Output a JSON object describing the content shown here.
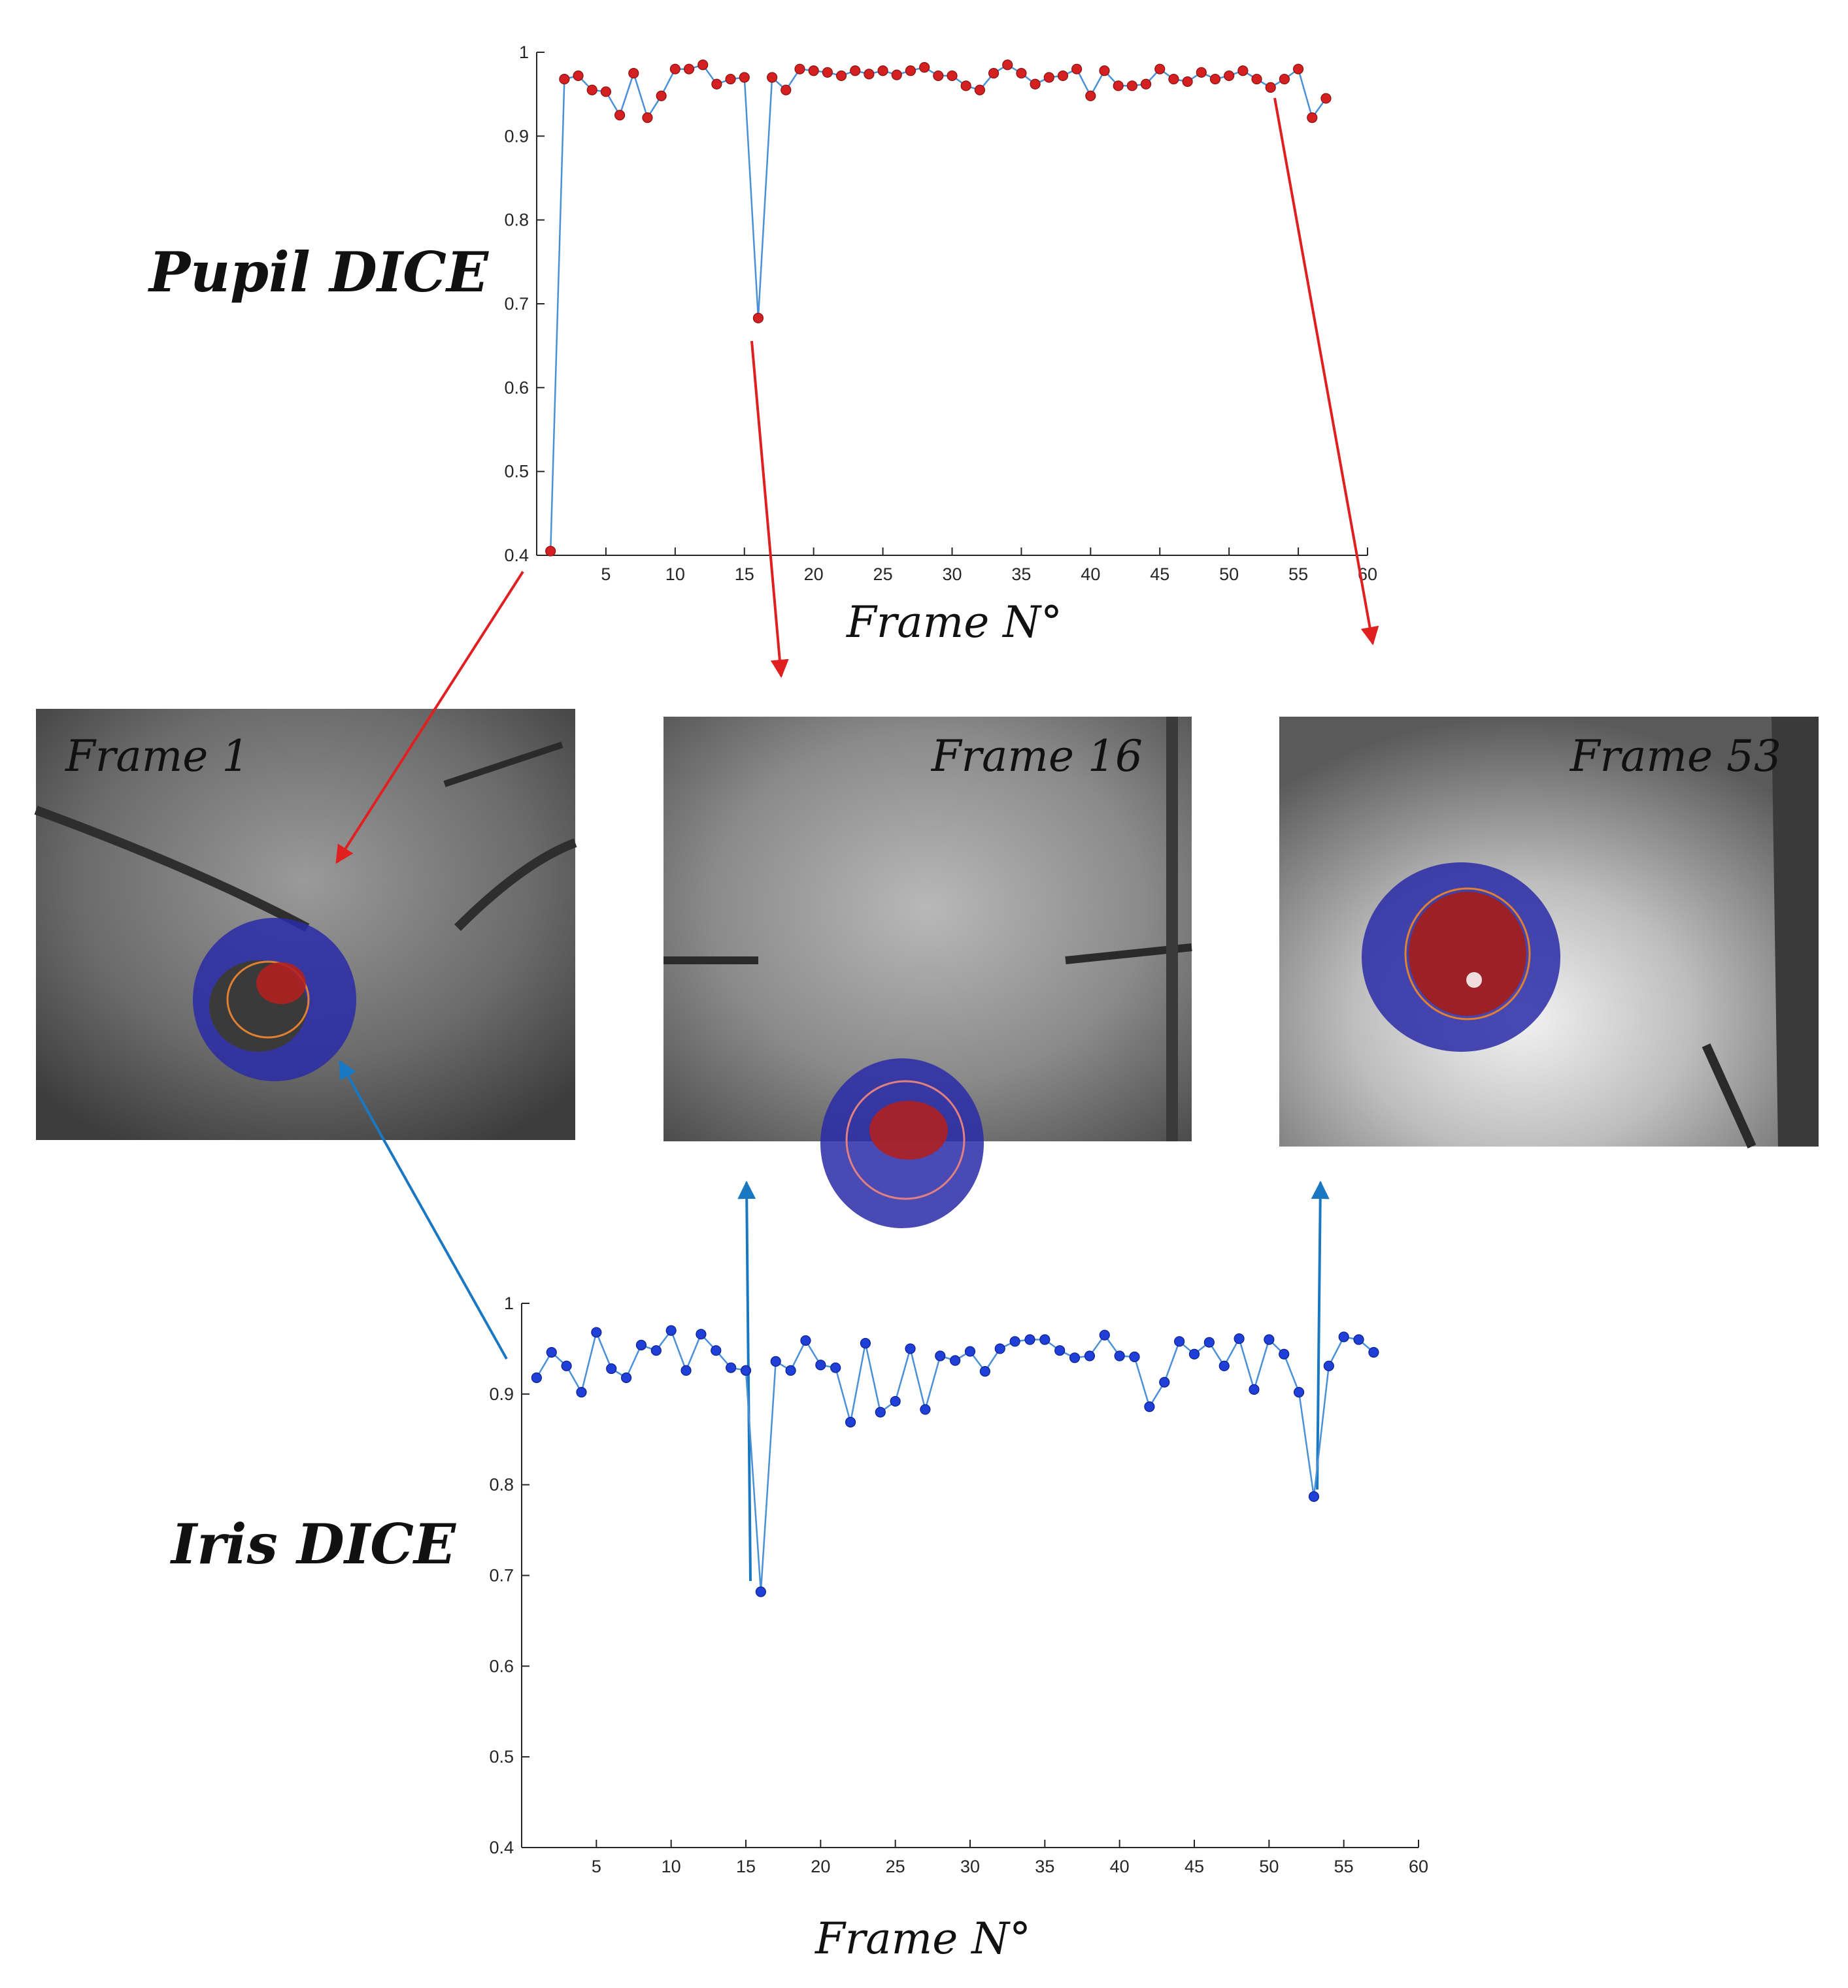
{
  "chart_data": [
    {
      "type": "line",
      "name": "pupil",
      "ylabel": "Pupil DICE",
      "xlabel": "Frame N°",
      "xlim": [
        0,
        60
      ],
      "ylim": [
        0.4,
        1
      ],
      "xticks": [
        "5",
        "10",
        "15",
        "20",
        "25",
        "30",
        "35",
        "40",
        "45",
        "50",
        "55",
        "60"
      ],
      "yticks": [
        "0.4",
        "0.5",
        "0.6",
        "0.7",
        "0.8",
        "0.9",
        "1"
      ],
      "line_color": "#4a90d9",
      "marker_color": "#d42020",
      "x": [
        1,
        2,
        3,
        4,
        5,
        6,
        7,
        8,
        9,
        10,
        11,
        12,
        13,
        14,
        15,
        16,
        17,
        18,
        19,
        20,
        21,
        22,
        23,
        24,
        25,
        26,
        27,
        28,
        29,
        30,
        31,
        32,
        33,
        34,
        35,
        36,
        37,
        38,
        39,
        40,
        41,
        42,
        43,
        44,
        45,
        46,
        47,
        48,
        49,
        50,
        51,
        52,
        53,
        54,
        55,
        56,
        57
      ],
      "values": [
        0.405,
        0.968,
        0.972,
        0.955,
        0.953,
        0.925,
        0.975,
        0.922,
        0.948,
        0.98,
        0.98,
        0.985,
        0.962,
        0.968,
        0.97,
        0.683,
        0.97,
        0.955,
        0.98,
        0.978,
        0.976,
        0.972,
        0.978,
        0.974,
        0.978,
        0.973,
        0.978,
        0.982,
        0.972,
        0.972,
        0.96,
        0.955,
        0.975,
        0.985,
        0.975,
        0.962,
        0.97,
        0.972,
        0.98,
        0.948,
        0.978,
        0.96,
        0.96,
        0.962,
        0.98,
        0.968,
        0.965,
        0.976,
        0.968,
        0.972,
        0.978,
        0.968,
        0.958,
        0.968,
        0.98,
        0.922,
        0.945
      ]
    },
    {
      "type": "line",
      "name": "iris",
      "ylabel": "Iris DICE",
      "xlabel": "Frame N°",
      "xlim": [
        0,
        60
      ],
      "ylim": [
        0.4,
        1
      ],
      "xticks": [
        "5",
        "10",
        "15",
        "20",
        "25",
        "30",
        "35",
        "40",
        "45",
        "50",
        "55",
        "60"
      ],
      "yticks": [
        "0.4",
        "0.5",
        "0.6",
        "0.7",
        "0.8",
        "0.9",
        "1"
      ],
      "line_color": "#4a90d9",
      "marker_color": "#1f3fd6",
      "x": [
        1,
        2,
        3,
        4,
        5,
        6,
        7,
        8,
        9,
        10,
        11,
        12,
        13,
        14,
        15,
        16,
        17,
        18,
        19,
        20,
        21,
        22,
        23,
        24,
        25,
        26,
        27,
        28,
        29,
        30,
        31,
        32,
        33,
        34,
        35,
        36,
        37,
        38,
        39,
        40,
        41,
        42,
        43,
        44,
        45,
        46,
        47,
        48,
        49,
        50,
        51,
        52,
        53,
        54,
        55,
        56,
        57
      ],
      "values": [
        0.918,
        0.946,
        0.931,
        0.902,
        0.968,
        0.928,
        0.918,
        0.954,
        0.948,
        0.97,
        0.926,
        0.966,
        0.948,
        0.929,
        0.926,
        0.682,
        0.936,
        0.926,
        0.959,
        0.932,
        0.929,
        0.869,
        0.956,
        0.88,
        0.892,
        0.95,
        0.883,
        0.942,
        0.937,
        0.947,
        0.925,
        0.95,
        0.958,
        0.96,
        0.96,
        0.948,
        0.94,
        0.942,
        0.965,
        0.942,
        0.941,
        0.886,
        0.913,
        0.958,
        0.944,
        0.957,
        0.931,
        0.961,
        0.905,
        0.96,
        0.944,
        0.902,
        0.787,
        0.931,
        0.963,
        0.96,
        0.946
      ]
    }
  ],
  "frames": [
    {
      "label": "Frame 1"
    },
    {
      "label": "Frame 16"
    },
    {
      "label": "Frame 53"
    }
  ],
  "colors": {
    "red_arrow": "#e02020",
    "blue_arrow": "#1a78c2",
    "iris_overlay": "#2a2ab0",
    "pupil_overlay": "#b02020"
  }
}
